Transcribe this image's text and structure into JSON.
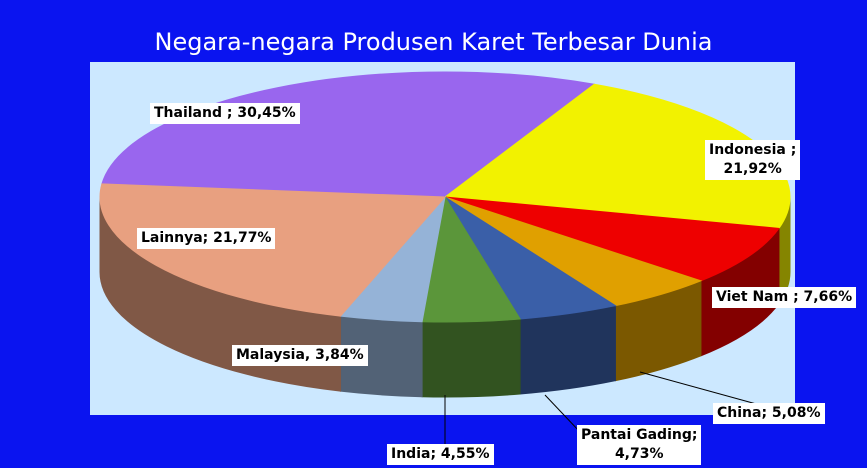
{
  "chart_data": {
    "type": "pie",
    "title": "Negara-negara Produsen Karet Terbesar Dunia",
    "values": [
      30.45,
      21.92,
      7.66,
      5.08,
      4.73,
      4.55,
      3.84,
      21.77
    ],
    "value_labels": [
      "Thailand ; 30,45%",
      "Indonesia ;\n21,92%",
      "Viet Nam ; 7,66%",
      "China; 5,08%",
      "Pantai Gading;\n4,73%",
      "India; 4,55%",
      "Malaysia, 3,84%",
      "Lainnya; 21,77%"
    ],
    "colors": [
      "#9966ee",
      "#f2f200",
      "#ee0000",
      "#e0a000",
      "#3a5fa8",
      "#5b963a",
      "#95b3d7",
      "#e8a080"
    ]
  }
}
